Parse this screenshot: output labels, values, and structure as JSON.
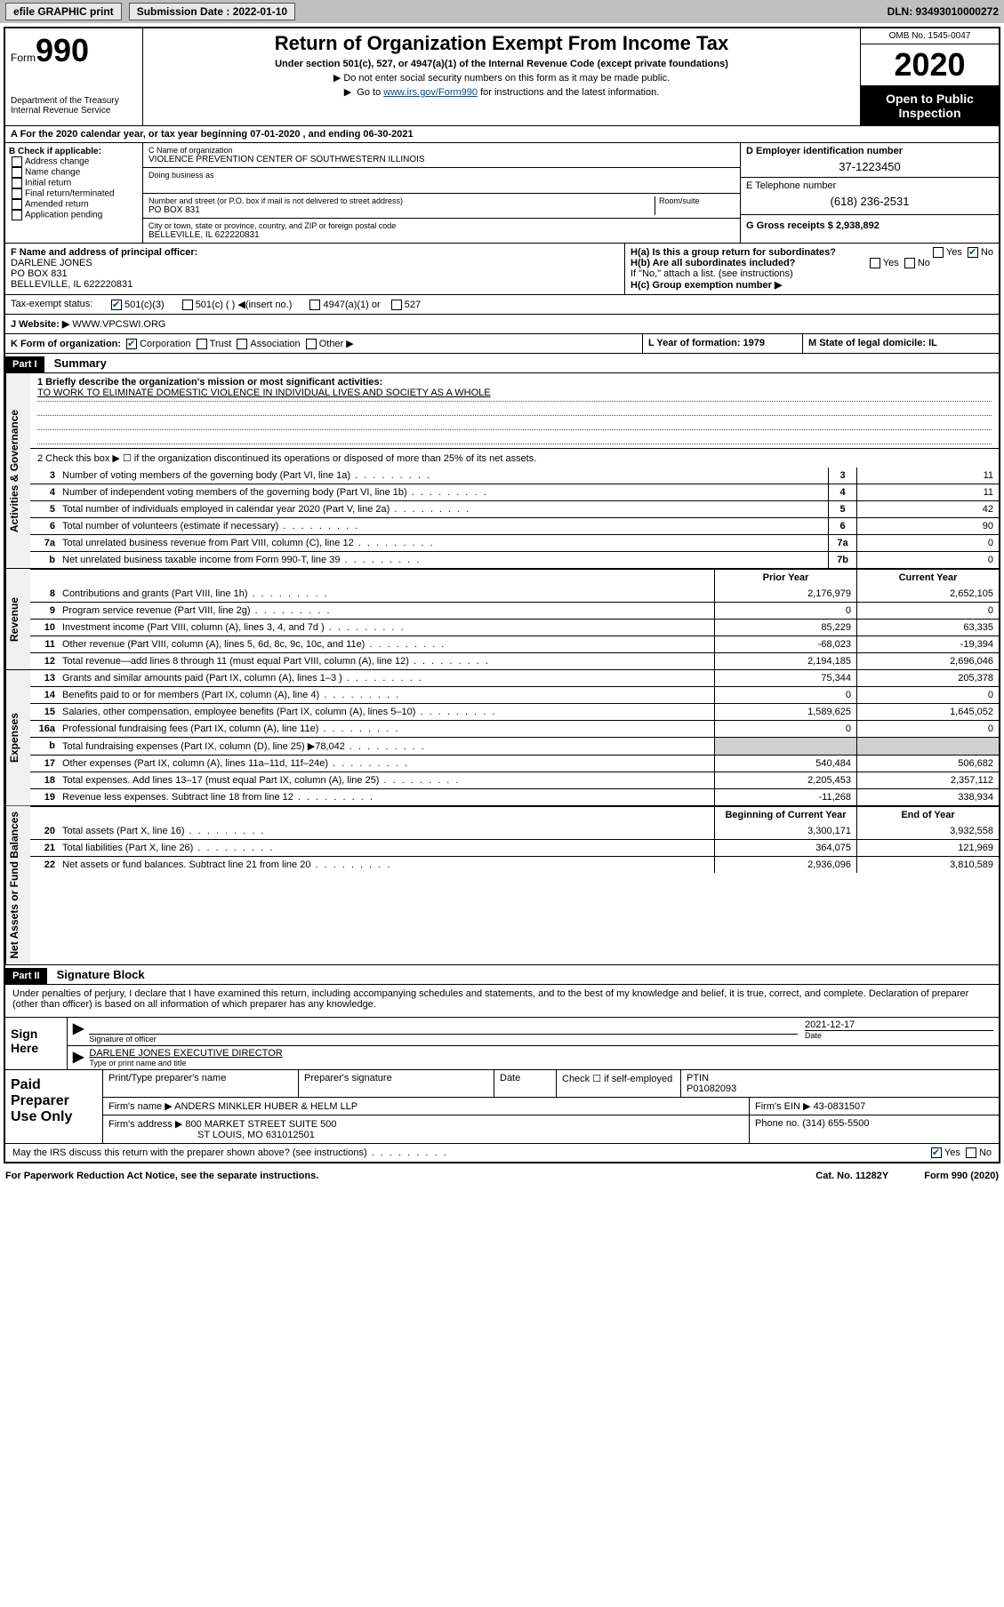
{
  "topbar": {
    "efile": "efile GRAPHIC print",
    "submission_label": "Submission Date : 2022-01-10",
    "dln_label": "DLN: 93493010000272"
  },
  "header": {
    "form_label": "Form",
    "form_number": "990",
    "title": "Return of Organization Exempt From Income Tax",
    "subtitle": "Under section 501(c), 527, or 4947(a)(1) of the Internal Revenue Code (except private foundations)",
    "note1": "Do not enter social security numbers on this form as it may be made public.",
    "note2_prefix": "Go to ",
    "note2_link": "www.irs.gov/Form990",
    "note2_suffix": " for instructions and the latest information.",
    "dept1": "Department of the Treasury",
    "dept2": "Internal Revenue Service",
    "omb": "OMB No. 1545-0047",
    "year": "2020",
    "open_public": "Open to Public Inspection"
  },
  "rowA": {
    "text": "A For the 2020 calendar year, or tax year beginning 07-01-2020   , and ending 06-30-2021"
  },
  "colB": {
    "heading": "B Check if applicable:",
    "items": [
      "Address change",
      "Name change",
      "Initial return",
      "Final return/terminated",
      "Amended return",
      "Application pending"
    ]
  },
  "colC": {
    "name_label": "C Name of organization",
    "name": "VIOLENCE PREVENTION CENTER OF SOUTHWESTERN ILLINOIS",
    "dba_label": "Doing business as",
    "street_label": "Number and street (or P.O. box if mail is not delivered to street address)",
    "room_label": "Room/suite",
    "street": "PO BOX 831",
    "city_label": "City or town, state or province, country, and ZIP or foreign postal code",
    "city": "BELLEVILLE, IL  622220831"
  },
  "colD": {
    "ein_label": "D Employer identification number",
    "ein": "37-1223450",
    "phone_label": "E Telephone number",
    "phone": "(618) 236-2531",
    "gross_label": "G Gross receipts $ 2,938,892"
  },
  "rowF": {
    "label": "F  Name and address of principal officer:",
    "name": "DARLENE JONES",
    "street": "PO BOX 831",
    "city": "BELLEVILLE, IL  622220831"
  },
  "rowH": {
    "ha": "H(a)  Is this a group return for subordinates?",
    "hb": "H(b)  Are all subordinates included?",
    "hb_note": "If \"No,\" attach a list. (see instructions)",
    "hc": "H(c)  Group exemption number ▶",
    "yes": "Yes",
    "no": "No"
  },
  "taxExempt": {
    "label": "Tax-exempt status:",
    "opts": [
      "501(c)(3)",
      "501(c) (  ) ◀(insert no.)",
      "4947(a)(1) or",
      "527"
    ]
  },
  "website": {
    "label": "J Website: ▶",
    "value": "WWW.VPCSWI.ORG"
  },
  "rowK": {
    "label": "K Form of organization:",
    "opts": [
      "Corporation",
      "Trust",
      "Association",
      "Other ▶"
    ],
    "L": "L Year of formation: 1979",
    "M": "M State of legal domicile: IL"
  },
  "part1": {
    "tag": "Part I",
    "title": "Summary",
    "l1_label": "1  Briefly describe the organization's mission or most significant activities:",
    "l1_text": "TO WORK TO ELIMINATE DOMESTIC VIOLENCE IN INDIVIDUAL LIVES AND SOCIETY AS A WHOLE",
    "l2": "2  Check this box ▶ ☐  if the organization discontinued its operations or disposed of more than 25% of its net assets.",
    "lines_top": [
      {
        "n": "3",
        "t": "Number of voting members of the governing body (Part VI, line 1a)",
        "b": "3",
        "v": "11"
      },
      {
        "n": "4",
        "t": "Number of independent voting members of the governing body (Part VI, line 1b)",
        "b": "4",
        "v": "11"
      },
      {
        "n": "5",
        "t": "Total number of individuals employed in calendar year 2020 (Part V, line 2a)",
        "b": "5",
        "v": "42"
      },
      {
        "n": "6",
        "t": "Total number of volunteers (estimate if necessary)",
        "b": "6",
        "v": "90"
      },
      {
        "n": "7a",
        "t": "Total unrelated business revenue from Part VIII, column (C), line 12",
        "b": "7a",
        "v": "0"
      },
      {
        "n": "b",
        "t": "Net unrelated business taxable income from Form 990-T, line 39",
        "b": "7b",
        "v": "0"
      }
    ],
    "col_hdr_prior": "Prior Year",
    "col_hdr_curr": "Current Year",
    "revenue": [
      {
        "n": "8",
        "t": "Contributions and grants (Part VIII, line 1h)",
        "p": "2,176,979",
        "c": "2,652,105"
      },
      {
        "n": "9",
        "t": "Program service revenue (Part VIII, line 2g)",
        "p": "0",
        "c": "0"
      },
      {
        "n": "10",
        "t": "Investment income (Part VIII, column (A), lines 3, 4, and 7d )",
        "p": "85,229",
        "c": "63,335"
      },
      {
        "n": "11",
        "t": "Other revenue (Part VIII, column (A), lines 5, 6d, 8c, 9c, 10c, and 11e)",
        "p": "-68,023",
        "c": "-19,394"
      },
      {
        "n": "12",
        "t": "Total revenue—add lines 8 through 11 (must equal Part VIII, column (A), line 12)",
        "p": "2,194,185",
        "c": "2,696,046"
      }
    ],
    "expenses": [
      {
        "n": "13",
        "t": "Grants and similar amounts paid (Part IX, column (A), lines 1–3 )",
        "p": "75,344",
        "c": "205,378"
      },
      {
        "n": "14",
        "t": "Benefits paid to or for members (Part IX, column (A), line 4)",
        "p": "0",
        "c": "0"
      },
      {
        "n": "15",
        "t": "Salaries, other compensation, employee benefits (Part IX, column (A), lines 5–10)",
        "p": "1,589,625",
        "c": "1,645,052"
      },
      {
        "n": "16a",
        "t": "Professional fundraising fees (Part IX, column (A), line 11e)",
        "p": "0",
        "c": "0"
      },
      {
        "n": "b",
        "t": "Total fundraising expenses (Part IX, column (D), line 25) ▶78,042",
        "p": "",
        "c": "",
        "shade": true
      },
      {
        "n": "17",
        "t": "Other expenses (Part IX, column (A), lines 11a–11d, 11f–24e)",
        "p": "540,484",
        "c": "506,682"
      },
      {
        "n": "18",
        "t": "Total expenses. Add lines 13–17 (must equal Part IX, column (A), line 25)",
        "p": "2,205,453",
        "c": "2,357,112"
      },
      {
        "n": "19",
        "t": "Revenue less expenses. Subtract line 18 from line 12",
        "p": "-11,268",
        "c": "338,934"
      }
    ],
    "col_hdr_begin": "Beginning of Current Year",
    "col_hdr_end": "End of Year",
    "netassets": [
      {
        "n": "20",
        "t": "Total assets (Part X, line 16)",
        "p": "3,300,171",
        "c": "3,932,558"
      },
      {
        "n": "21",
        "t": "Total liabilities (Part X, line 26)",
        "p": "364,075",
        "c": "121,969"
      },
      {
        "n": "22",
        "t": "Net assets or fund balances. Subtract line 21 from line 20",
        "p": "2,936,096",
        "c": "3,810,589"
      }
    ],
    "tab_gov": "Activities & Governance",
    "tab_rev": "Revenue",
    "tab_exp": "Expenses",
    "tab_net": "Net Assets or Fund Balances"
  },
  "part2": {
    "tag": "Part II",
    "title": "Signature Block",
    "decl": "Under penalties of perjury, I declare that I have examined this return, including accompanying schedules and statements, and to the best of my knowledge and belief, it is true, correct, and complete. Declaration of preparer (other than officer) is based on all information of which preparer has any knowledge.",
    "sign_here": "Sign Here",
    "sig_officer": "Signature of officer",
    "sig_date": "2021-12-17",
    "date_label": "Date",
    "officer_name": "DARLENE JONES  EXECUTIVE DIRECTOR",
    "type_name": "Type or print name and title",
    "paid": "Paid Preparer Use Only",
    "prep_name_label": "Print/Type preparer's name",
    "prep_sig_label": "Preparer's signature",
    "prep_date_label": "Date",
    "prep_check": "Check ☐ if self-employed",
    "ptin_label": "PTIN",
    "ptin": "P01082093",
    "firm_name_label": "Firm's name   ▶",
    "firm_name": "ANDERS MINKLER HUBER & HELM LLP",
    "firm_ein_label": "Firm's EIN ▶",
    "firm_ein": "43-0831507",
    "firm_addr_label": "Firm's address ▶",
    "firm_addr1": "800 MARKET STREET SUITE 500",
    "firm_addr2": "ST LOUIS, MO  631012501",
    "firm_phone_label": "Phone no.",
    "firm_phone": "(314) 655-5500",
    "irs_discuss": "May the IRS discuss this return with the preparer shown above? (see instructions)"
  },
  "footer": {
    "paperwork": "For Paperwork Reduction Act Notice, see the separate instructions.",
    "cat": "Cat. No. 11282Y",
    "form": "Form 990 (2020)"
  }
}
